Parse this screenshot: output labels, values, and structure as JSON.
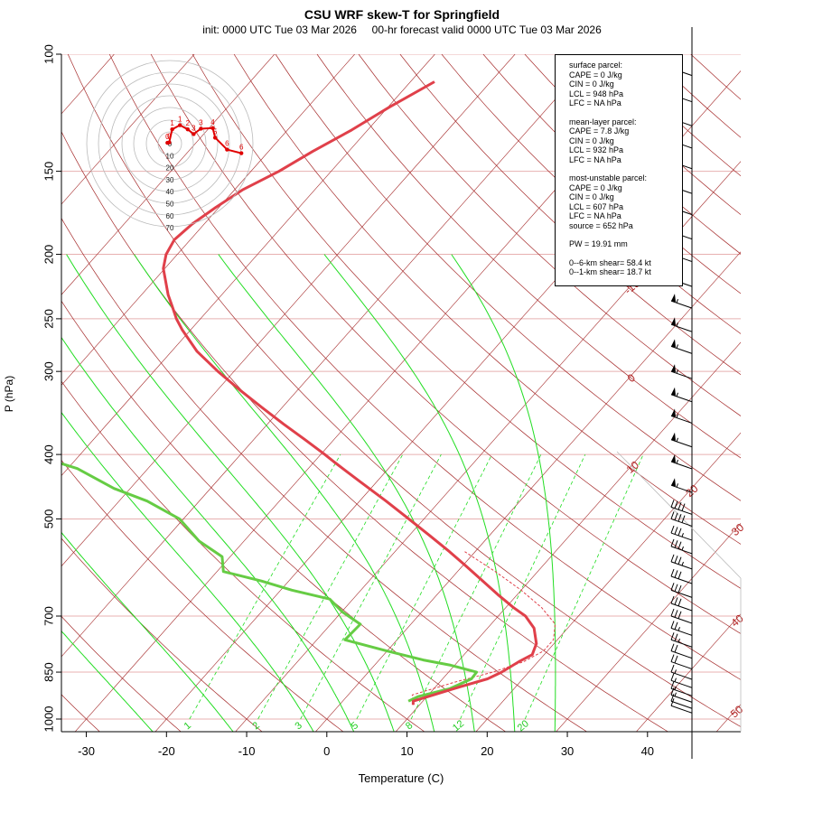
{
  "chart_data": {
    "type": "skew-t",
    "title": "CSU WRF skew-T for Springfield",
    "subtitle": "init: 0000 UTC Tue 03 Mar 2026     00-hr forecast valid 0000 UTC Tue 03 Mar 2026",
    "xlabel": "Temperature (C)",
    "ylabel": "P (hPa)",
    "x_ticks": [
      -30,
      -20,
      -10,
      0,
      10,
      20,
      30,
      40
    ],
    "y_ticks": [
      100,
      150,
      200,
      250,
      300,
      400,
      500,
      700,
      850,
      1000
    ],
    "xlim": [
      -33,
      52
    ],
    "ylim": [
      1050,
      100
    ],
    "isotherm_labels": [
      -10,
      0,
      10,
      20,
      30,
      40,
      50
    ],
    "mixing_ratio_labels": [
      "1",
      "2",
      "3",
      "5",
      "8",
      "12",
      "20"
    ],
    "temperature_profile": {
      "pressure": [
        952,
        940,
        900,
        870,
        850,
        820,
        800,
        770,
        730,
        700,
        680,
        650,
        620,
        590,
        560,
        530,
        500,
        470,
        440,
        410,
        400,
        380,
        360,
        340,
        320,
        300,
        280,
        260,
        250,
        240,
        230,
        210,
        200,
        190,
        180,
        170,
        160,
        150,
        140,
        130,
        120,
        110
      ],
      "temp": [
        9.2,
        8.8,
        12.5,
        15.6,
        16.6,
        17.6,
        18.5,
        17.8,
        15.8,
        13.4,
        11.0,
        7.6,
        4.2,
        0.6,
        -3.2,
        -7.4,
        -11.9,
        -16.7,
        -22.0,
        -27.6,
        -29.5,
        -33.6,
        -38.0,
        -42.5,
        -47.2,
        -52.0,
        -56.8,
        -61.0,
        -63.0,
        -64.8,
        -66.7,
        -70.2,
        -71.4,
        -72.0,
        -71.5,
        -70.4,
        -69.0,
        -66.5,
        -64.5,
        -62.0,
        -59.8,
        -57.0
      ]
    },
    "dewpoint_profile": {
      "pressure": [
        940,
        925,
        900,
        870,
        850,
        830,
        815,
        790,
        760,
        720,
        690,
        660,
        640,
        620,
        600,
        570,
        540,
        500,
        470,
        450,
        420,
        400,
        380,
        350,
        310,
        290,
        270,
        250,
        240,
        220,
        200,
        190,
        180,
        170
      ],
      "dewpoint": [
        8.2,
        8.9,
        12.0,
        13.6,
        13.5,
        9.5,
        5.5,
        0.0,
        -6.5,
        -6.3,
        -9.9,
        -12.9,
        -18.6,
        -23.4,
        -29.2,
        -31.0,
        -35.6,
        -40.5,
        -46.5,
        -52.0,
        -58.8,
        -66.0,
        -73.5,
        -79.5,
        -83.5,
        -88.0,
        -91.5,
        -94.0,
        -94.2,
        -95.5,
        -97.0,
        -97.5,
        -97.5,
        -97.0
      ]
    },
    "parcel_trace": {
      "pressure": [
        952,
        920,
        880,
        850,
        820,
        790,
        760,
        720,
        680,
        640,
        600,
        560
      ],
      "temp": [
        9.2,
        8.0,
        11.9,
        15.5,
        18.2,
        19.5,
        19.5,
        18.0,
        14.5,
        10.0,
        4.7,
        -1.3
      ]
    },
    "hodograph": {
      "ring_labels": [
        "0",
        "10",
        "20",
        "30",
        "40",
        "50",
        "60",
        "70"
      ],
      "points": [
        {
          "label": "0",
          "u": -2.0,
          "v": 0.7
        },
        {
          "label": "0",
          "u": -0.5,
          "v": 1.0
        },
        {
          "label": "1",
          "u": 2.0,
          "v": 12.0
        },
        {
          "label": "1",
          "u": 8.5,
          "v": 15.5
        },
        {
          "label": "2",
          "u": 15.0,
          "v": 12.0
        },
        {
          "label": "3",
          "u": 20.0,
          "v": 8.0
        },
        {
          "label": "3",
          "u": 26.0,
          "v": 12.5
        },
        {
          "label": "4",
          "u": 36.0,
          "v": 13.0
        },
        {
          "label": "5",
          "u": 38.0,
          "v": 5.0
        },
        {
          "label": "6",
          "u": 48.0,
          "v": -5.0
        },
        {
          "label": "6",
          "u": 60.0,
          "v": -8.0
        }
      ]
    },
    "wind_barbs_kt": [
      {
        "p": 105,
        "speed": 55,
        "dir": 255
      },
      {
        "p": 115,
        "speed": 60,
        "dir": 255
      },
      {
        "p": 125,
        "speed": 65,
        "dir": 255
      },
      {
        "p": 135,
        "speed": 65,
        "dir": 250
      },
      {
        "p": 145,
        "speed": 60,
        "dir": 250
      },
      {
        "p": 158,
        "speed": 55,
        "dir": 250
      },
      {
        "p": 170,
        "speed": 55,
        "dir": 250
      },
      {
        "p": 185,
        "speed": 55,
        "dir": 250
      },
      {
        "p": 200,
        "speed": 55,
        "dir": 250
      },
      {
        "p": 218,
        "speed": 55,
        "dir": 255
      },
      {
        "p": 235,
        "speed": 55,
        "dir": 255
      },
      {
        "p": 255,
        "speed": 55,
        "dir": 255
      },
      {
        "p": 275,
        "speed": 55,
        "dir": 255
      },
      {
        "p": 300,
        "speed": 55,
        "dir": 255
      },
      {
        "p": 325,
        "speed": 55,
        "dir": 255
      },
      {
        "p": 350,
        "speed": 55,
        "dir": 255
      },
      {
        "p": 380,
        "speed": 55,
        "dir": 255
      },
      {
        "p": 410,
        "speed": 55,
        "dir": 255
      },
      {
        "p": 445,
        "speed": 55,
        "dir": 260
      },
      {
        "p": 480,
        "speed": 40,
        "dir": 260
      },
      {
        "p": 500,
        "speed": 40,
        "dir": 260
      },
      {
        "p": 525,
        "speed": 35,
        "dir": 265
      },
      {
        "p": 550,
        "speed": 35,
        "dir": 265
      },
      {
        "p": 580,
        "speed": 35,
        "dir": 265
      },
      {
        "p": 610,
        "speed": 30,
        "dir": 265
      },
      {
        "p": 640,
        "speed": 30,
        "dir": 265
      },
      {
        "p": 670,
        "speed": 30,
        "dir": 260
      },
      {
        "p": 700,
        "speed": 30,
        "dir": 255
      },
      {
        "p": 730,
        "speed": 25,
        "dir": 250
      },
      {
        "p": 760,
        "speed": 25,
        "dir": 240
      },
      {
        "p": 790,
        "speed": 20,
        "dir": 230
      },
      {
        "p": 820,
        "speed": 20,
        "dir": 220
      },
      {
        "p": 850,
        "speed": 15,
        "dir": 210
      },
      {
        "p": 875,
        "speed": 15,
        "dir": 195
      },
      {
        "p": 900,
        "speed": 15,
        "dir": 180
      },
      {
        "p": 920,
        "speed": 15,
        "dir": 170
      },
      {
        "p": 940,
        "speed": 10,
        "dir": 160
      },
      {
        "p": 955,
        "speed": 10,
        "dir": 150
      }
    ]
  },
  "legend": {
    "surface": [
      "surface parcel:",
      "CAPE = 0 J/kg",
      "CIN = 0 J/kg",
      "LCL = 948 hPa",
      "LFC = NA hPa"
    ],
    "mean_layer": [
      "mean-layer parcel:",
      "CAPE = 7.8 J/kg",
      "CIN = 0 J/kg",
      "LCL = 932 hPa",
      "LFC = NA hPa"
    ],
    "most_unstable": [
      "most-unstable parcel:",
      "CAPE = 0 J/kg",
      "CIN = 0 J/kg",
      "LCL = 607 hPa",
      "LFC = NA hPa",
      "source = 652 hPa"
    ],
    "pw": "PW =  19.91 mm",
    "shear": [
      "0--6-km shear= 58.4 kt",
      "0--1-km shear= 18.7 kt"
    ]
  },
  "colors": {
    "temperature": "#e0404a",
    "dewpoint": "#66cc44",
    "isotherm": "#a52a2a",
    "mixing_ratio": "#22dd22",
    "isobar": "#e8b0b0",
    "hodograph": "#e00000"
  }
}
